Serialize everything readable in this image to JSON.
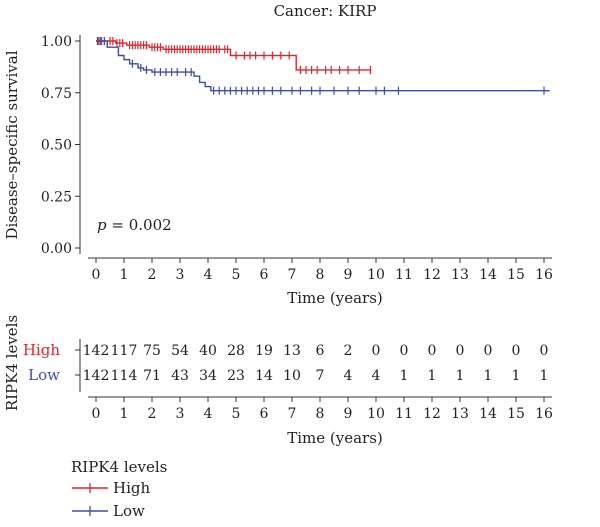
{
  "chart_data": {
    "type": "line",
    "title": "Cancer: KIRP",
    "xlabel": "Time (years)",
    "ylabel": "Disease–specific survival",
    "xlim": [
      0,
      16
    ],
    "ylim": [
      0,
      1
    ],
    "x_ticks": [
      "0",
      "1",
      "2",
      "3",
      "4",
      "5",
      "6",
      "7",
      "8",
      "9",
      "10",
      "11",
      "12",
      "13",
      "14",
      "15",
      "16"
    ],
    "y_ticks": [
      "0.00",
      "0.25",
      "0.50",
      "0.75",
      "1.00"
    ],
    "annotation_p": "p",
    "annotation_value": " = 0.002",
    "series": [
      {
        "name": "High",
        "color": "#e8222a",
        "steps": [
          [
            0,
            1.0
          ],
          [
            0.7,
            0.99
          ],
          [
            1.1,
            0.98
          ],
          [
            1.9,
            0.97
          ],
          [
            2.4,
            0.96
          ],
          [
            4.8,
            0.93
          ],
          [
            7.15,
            0.86
          ],
          [
            9.8,
            0.86
          ]
        ],
        "censor": [
          0.1,
          0.2,
          0.3,
          0.5,
          0.6,
          0.75,
          0.85,
          0.95,
          1.2,
          1.3,
          1.4,
          1.5,
          1.6,
          1.7,
          1.8,
          2.0,
          2.1,
          2.2,
          2.3,
          2.5,
          2.6,
          2.7,
          2.8,
          2.9,
          3.0,
          3.1,
          3.2,
          3.3,
          3.4,
          3.5,
          3.6,
          3.7,
          3.8,
          3.9,
          4.0,
          4.1,
          4.2,
          4.3,
          4.4,
          4.6,
          4.7,
          5.0,
          5.3,
          5.5,
          5.7,
          6.0,
          6.3,
          6.6,
          6.9,
          7.3,
          7.5,
          7.7,
          7.9,
          8.2,
          8.4,
          8.7,
          9.0,
          9.4,
          9.8
        ]
      },
      {
        "name": "Low",
        "color": "#3e4fa3",
        "steps": [
          [
            0,
            1.0
          ],
          [
            0.4,
            0.97
          ],
          [
            0.8,
            0.93
          ],
          [
            1.0,
            0.91
          ],
          [
            1.2,
            0.89
          ],
          [
            1.5,
            0.87
          ],
          [
            1.7,
            0.86
          ],
          [
            2.0,
            0.85
          ],
          [
            3.5,
            0.83
          ],
          [
            3.7,
            0.8
          ],
          [
            3.9,
            0.78
          ],
          [
            4.1,
            0.76
          ],
          [
            16.2,
            0.76
          ]
        ],
        "censor": [
          0.05,
          0.15,
          0.3,
          1.3,
          1.6,
          1.8,
          2.1,
          2.3,
          2.5,
          2.7,
          2.9,
          3.2,
          3.4,
          4.2,
          4.4,
          4.6,
          4.8,
          5.0,
          5.2,
          5.4,
          5.6,
          5.8,
          6.0,
          6.3,
          6.6,
          7.0,
          7.3,
          7.7,
          8.0,
          8.5,
          9.0,
          9.4,
          10.0,
          10.3,
          10.8,
          16.0
        ]
      }
    ]
  },
  "risk_table": {
    "y_axis_label": "RIPK4 levels",
    "xlabel": "Time (years)",
    "x_ticks": [
      "0",
      "1",
      "2",
      "3",
      "4",
      "5",
      "6",
      "7",
      "8",
      "9",
      "10",
      "11",
      "12",
      "13",
      "14",
      "15",
      "16"
    ],
    "rows": [
      {
        "label": "High",
        "color": "#e8222a",
        "counts": [
          "142",
          "117",
          "75",
          "54",
          "40",
          "28",
          "19",
          "13",
          "6",
          "2",
          "0",
          "0",
          "0",
          "0",
          "0",
          "0",
          "0"
        ]
      },
      {
        "label": "Low",
        "color": "#3e4fa3",
        "counts": [
          "142",
          "114",
          "71",
          "43",
          "34",
          "23",
          "14",
          "10",
          "7",
          "4",
          "4",
          "1",
          "1",
          "1",
          "1",
          "1",
          "1"
        ]
      }
    ]
  },
  "legend": {
    "title": "RIPK4 levels",
    "items": [
      {
        "label": "High",
        "color": "#e8222a"
      },
      {
        "label": "Low",
        "color": "#3e4fa3"
      }
    ]
  }
}
